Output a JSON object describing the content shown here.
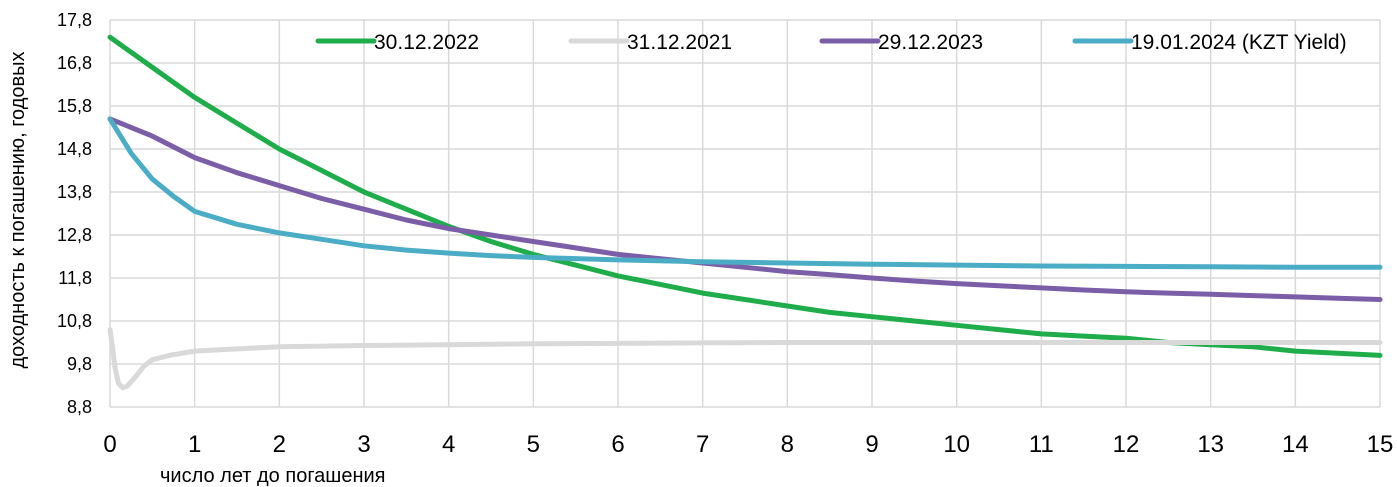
{
  "chart_data": {
    "type": "line",
    "title": "",
    "xlabel": "число лет до погашения",
    "ylabel": "доходность к погашению, годовых",
    "xlim": [
      0,
      15
    ],
    "ylim": [
      8.8,
      17.8
    ],
    "x_ticks": [
      "0",
      "1",
      "2",
      "3",
      "4",
      "5",
      "6",
      "7",
      "8",
      "9",
      "10",
      "11",
      "12",
      "13",
      "14",
      "15"
    ],
    "y_ticks": [
      "8,8",
      "9,8",
      "10,8",
      "11,8",
      "12,8",
      "13,8",
      "14,8",
      "15,8",
      "16,8",
      "17,8"
    ],
    "grid": true,
    "legend_position": "top",
    "series": [
      {
        "name": "30.12.2022",
        "color": "#1fad4b",
        "x": [
          0,
          0.5,
          1,
          1.5,
          2,
          2.5,
          3,
          3.5,
          4,
          4.5,
          5,
          5.5,
          6,
          6.5,
          7,
          7.5,
          8,
          8.5,
          9,
          9.5,
          10,
          10.5,
          11,
          11.5,
          12,
          12.5,
          13,
          13.5,
          14,
          14.5,
          15
        ],
        "values": [
          17.4,
          16.7,
          16.0,
          15.4,
          14.8,
          14.3,
          13.8,
          13.4,
          13.0,
          12.65,
          12.35,
          12.1,
          11.85,
          11.65,
          11.45,
          11.3,
          11.15,
          11.0,
          10.9,
          10.8,
          10.7,
          10.6,
          10.5,
          10.45,
          10.4,
          10.3,
          10.25,
          10.2,
          10.1,
          10.05,
          10.0
        ]
      },
      {
        "name": "31.12.2021",
        "color": "#d9d9d9",
        "x": [
          0,
          0.03,
          0.06,
          0.1,
          0.15,
          0.2,
          0.3,
          0.4,
          0.5,
          0.7,
          1,
          1.5,
          2,
          3,
          4,
          5,
          6,
          7,
          8,
          9,
          10,
          11,
          12,
          13,
          14,
          15
        ],
        "values": [
          10.6,
          10.2,
          9.7,
          9.35,
          9.25,
          9.28,
          9.5,
          9.75,
          9.9,
          10.0,
          10.1,
          10.15,
          10.2,
          10.23,
          10.25,
          10.27,
          10.28,
          10.29,
          10.3,
          10.3,
          10.3,
          10.3,
          10.3,
          10.3,
          10.3,
          10.3
        ]
      },
      {
        "name": "29.12.2023",
        "color": "#7b5ea7",
        "x": [
          0,
          0.5,
          1,
          1.5,
          2,
          2.5,
          3,
          3.5,
          4,
          4.5,
          5,
          5.5,
          6,
          6.5,
          7,
          7.5,
          8,
          8.5,
          9,
          9.5,
          10,
          10.5,
          11,
          11.5,
          12,
          12.5,
          13,
          13.5,
          14,
          14.5,
          15
        ],
        "values": [
          15.5,
          15.1,
          14.6,
          14.25,
          13.95,
          13.65,
          13.4,
          13.15,
          12.95,
          12.8,
          12.65,
          12.5,
          12.35,
          12.25,
          12.15,
          12.05,
          11.95,
          11.88,
          11.8,
          11.73,
          11.67,
          11.62,
          11.57,
          11.52,
          11.48,
          11.45,
          11.42,
          11.39,
          11.36,
          11.33,
          11.3
        ]
      },
      {
        "name": "19.01.2024 (KZT Yield)",
        "color": "#4bacc6",
        "x": [
          0,
          0.25,
          0.5,
          0.75,
          1,
          1.5,
          2,
          2.5,
          3,
          3.5,
          4,
          4.5,
          5,
          6,
          7,
          8,
          9,
          10,
          11,
          12,
          13,
          14,
          15
        ],
        "values": [
          15.5,
          14.7,
          14.1,
          13.7,
          13.35,
          13.05,
          12.85,
          12.7,
          12.55,
          12.45,
          12.38,
          12.32,
          12.28,
          12.22,
          12.18,
          12.15,
          12.12,
          12.1,
          12.08,
          12.07,
          12.06,
          12.05,
          12.05
        ]
      }
    ]
  }
}
